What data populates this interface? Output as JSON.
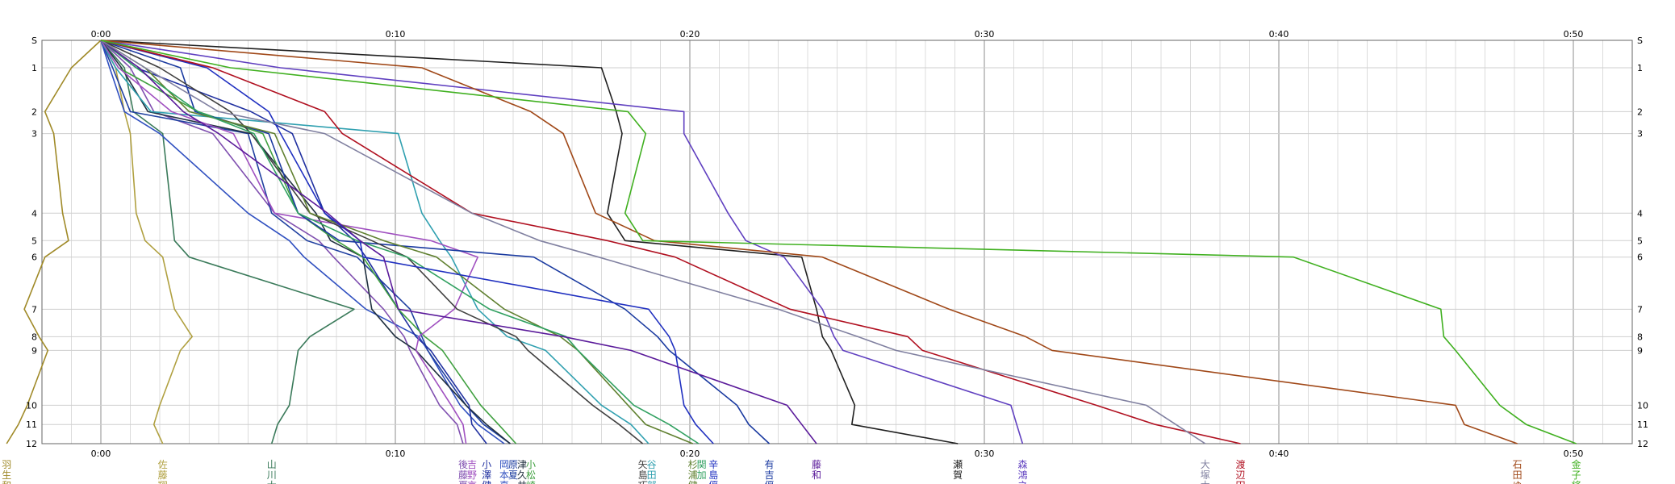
{
  "chart_data": {
    "type": "line",
    "x_axis": {
      "label": "",
      "ticks": [
        "0:00",
        "0:10",
        "0:20",
        "0:30",
        "0:40",
        "0:50"
      ],
      "range_minutes": [
        -2,
        52
      ],
      "major_step_minutes": 10,
      "minor_step_minutes": 1
    },
    "y_axis": {
      "label": "",
      "controls": [
        "S",
        "1",
        "2",
        "3",
        "4",
        "5",
        "6",
        "7",
        "8",
        "9",
        "10",
        "11",
        "12"
      ],
      "cumulative_distance": [
        0,
        1.0,
        2.6,
        3.4,
        6.3,
        7.3,
        7.9,
        9.8,
        10.8,
        11.3,
        13.3,
        14.0,
        14.7
      ]
    },
    "grid": true,
    "legend": "bottom",
    "series": [
      {
        "name": "羽生和",
        "color": "#a08a28",
        "splits": [
          0,
          -1.0,
          -0.9,
          0.3,
          0.3,
          0.2,
          -0.8,
          -0.7,
          0.5,
          0.3,
          -0.7,
          -0.3,
          -0.4
        ]
      },
      {
        "name": "佐藤翔",
        "color": "#b0a040",
        "splits": [
          0,
          0.5,
          0.3,
          0.2,
          0.2,
          0.3,
          0.6,
          0.4,
          0.6,
          -0.4,
          -0.7,
          -0.2,
          0.3
        ]
      },
      {
        "name": "山川大",
        "color": "#3a7a5a",
        "splits": [
          0,
          0.8,
          0.3,
          1.0,
          0.3,
          0.1,
          0.5,
          5.6,
          -1.5,
          -0.4,
          -0.3,
          -0.4,
          -0.2
        ]
      },
      {
        "name": "岡本真",
        "color": "#3050c0",
        "splits": [
          0,
          0.3,
          0.5,
          1.2,
          3.0,
          1.4,
          0.5,
          2.1,
          1.8,
          0.3,
          1.1,
          0.6,
          0.9
        ]
      },
      {
        "name": "後藤夏",
        "color": "#8050b0",
        "splits": [
          0,
          1.0,
          0.8,
          2.0,
          2.1,
          1.5,
          0.5,
          1.7,
          0.7,
          0.2,
          1.0,
          0.6,
          0.2
        ]
      },
      {
        "name": "原夏",
        "color": "#2040a0",
        "splits": [
          0,
          0.4,
          0.6,
          4.0,
          0.8,
          1.2,
          1.7,
          1.8,
          0.4,
          0.2,
          1.3,
          0.6,
          0.9
        ]
      },
      {
        "name": "津久井",
        "color": "#203040",
        "splits": [
          0,
          0.7,
          0.9,
          3.5,
          2.2,
          0.5,
          1.1,
          0.3,
          0.8,
          0.7,
          1.7,
          0.7,
          0.8
        ]
      },
      {
        "name": "小澤健",
        "color": "#2030a0",
        "splits": [
          0,
          1.2,
          3.9,
          1.4,
          1.1,
          1.0,
          0.4,
          1.1,
          0.6,
          0.5,
          1.3,
          0.1,
          0.5
        ]
      },
      {
        "name": "小松崎",
        "color": "#40a040",
        "splits": [
          0,
          0.6,
          2.7,
          2.2,
          1.2,
          1.3,
          0.9,
          1.2,
          0.9,
          0.6,
          1.3,
          0.6,
          0.6
        ]
      },
      {
        "name": "谷田部",
        "color": "#30a0b0",
        "splits": [
          0,
          0.5,
          1.2,
          8.4,
          0.8,
          0.6,
          0.4,
          0.9,
          1.0,
          1.3,
          1.9,
          1.0,
          0.6
        ]
      },
      {
        "name": "吉野京",
        "color": "#a050c0",
        "splits": [
          0,
          0.6,
          1.8,
          2.1,
          1.4,
          5.3,
          1.6,
          -0.8,
          -1.2,
          -0.1,
          1.2,
          0.4,
          0.1
        ]
      },
      {
        "name": "有吉優",
        "color": "#1a3aa0",
        "splits": [
          0,
          2.7,
          0.5,
          2.5,
          1.0,
          1.4,
          6.6,
          3.1,
          1.1,
          0.4,
          2.3,
          0.4,
          0.7
        ]
      },
      {
        "name": "矢島巧",
        "color": "#404040",
        "splits": [
          0,
          2.0,
          2.4,
          0.7,
          2.0,
          2.1,
          1.2,
          1.7,
          2.0,
          0.4,
          2.2,
          0.9,
          0.8
        ]
      },
      {
        "name": "杉浦健",
        "color": "#608030",
        "splits": [
          0,
          1.5,
          1.5,
          2.9,
          1.2,
          2.5,
          1.8,
          2.3,
          1.9,
          0.6,
          1.7,
          0.6,
          1.6
        ]
      },
      {
        "name": "関加",
        "color": "#30a060",
        "splits": [
          0,
          1.2,
          2.1,
          1.9,
          1.5,
          2.0,
          1.7,
          2.8,
          2.6,
          0.4,
          1.9,
          1.2,
          1.0
        ]
      },
      {
        "name": "辛島優",
        "color": "#2030c0",
        "splits": [
          0,
          3.6,
          2.1,
          0.4,
          1.5,
          1.2,
          0.1,
          9.7,
          0.7,
          0.2,
          0.3,
          0.4,
          0.6
        ]
      },
      {
        "name": "瀬賀",
        "color": "#202020",
        "splits": [
          0,
          17.0,
          0.5,
          0.2,
          -0.5,
          0.6,
          6.0,
          0.5,
          0.2,
          0.3,
          0.8,
          -0.1,
          3.6
        ]
      },
      {
        "name": "藤和",
        "color": "#5a1a9a",
        "splits": [
          0,
          1.3,
          1.5,
          1.2,
          3.7,
          1.1,
          0.8,
          0.5,
          5.6,
          2.3,
          5.3,
          0.5,
          0.5
        ]
      },
      {
        "name": "森鴻之",
        "color": "#6040c0",
        "splits": [
          0,
          6.1,
          13.7,
          0.0,
          1.5,
          0.6,
          1.3,
          1.3,
          0.4,
          0.3,
          5.7,
          0.2,
          0.2
        ]
      },
      {
        "name": "渡辺円",
        "color": "#b01020",
        "splits": [
          0,
          3.8,
          3.8,
          0.6,
          4.4,
          4.6,
          2.3,
          3.9,
          4.0,
          0.5,
          5.9,
          2.0,
          2.9
        ]
      },
      {
        "name": "大塚木",
        "color": "#8080a0",
        "splits": [
          0,
          1.5,
          2.5,
          3.6,
          5.0,
          2.3,
          2.0,
          6.1,
          2.7,
          1.3,
          8.5,
          1.0,
          1.0
        ]
      },
      {
        "name": "石田ゆ",
        "color": "#a04818",
        "splits": [
          0,
          10.9,
          3.7,
          1.1,
          1.1,
          2.0,
          5.7,
          4.3,
          2.6,
          0.9,
          13.7,
          0.3,
          1.8
        ]
      },
      {
        "name": "金子将",
        "color": "#40b020",
        "splits": [
          0,
          4.4,
          13.5,
          0.6,
          -0.7,
          0.6,
          22.1,
          5.0,
          0.1,
          0.4,
          1.5,
          0.9,
          1.7
        ]
      }
    ]
  }
}
